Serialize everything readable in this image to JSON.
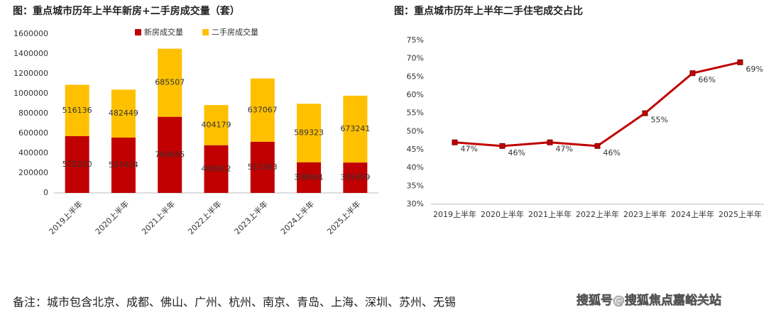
{
  "chart_data": [
    {
      "type": "bar",
      "stacked": true,
      "title": "图：重点城市历年上半年新房+二手房成交量（套）",
      "categories": [
        "2019上半年",
        "2020上半年",
        "2021上半年",
        "2022上半年",
        "2023上半年",
        "2024上半年",
        "2025上半年"
      ],
      "series": [
        {
          "name": "新房成交量",
          "color": "#c00000",
          "values": [
            572220,
            557434,
            766645,
            480412,
            515363,
            308691,
            305959
          ]
        },
        {
          "name": "二手房成交量",
          "color": "#ffc000",
          "values": [
            516136,
            482449,
            685507,
            404179,
            637067,
            589323,
            673241
          ]
        }
      ],
      "ylim": [
        0,
        1600000
      ],
      "yticks": [
        0,
        200000,
        400000,
        600000,
        800000,
        1000000,
        1200000,
        1400000,
        1600000
      ],
      "legend": "top"
    },
    {
      "type": "line",
      "title": "图：重点城市历年上半年二手住宅成交占比",
      "categories": [
        "2019上半年",
        "2020上半年",
        "2021上半年",
        "2022上半年",
        "2023上半年",
        "2024上半年",
        "2025上半年"
      ],
      "values": [
        47,
        46,
        47,
        46,
        55,
        66,
        69
      ],
      "value_labels": [
        "47%",
        "46%",
        "47%",
        "46%",
        "55%",
        "66%",
        "69%"
      ],
      "color": "#c00000",
      "ylim": [
        30,
        75
      ],
      "yticks": [
        {
          "value": 30,
          "label": "30%"
        },
        {
          "value": 35,
          "label": "35%"
        },
        {
          "value": 40,
          "label": "40%"
        },
        {
          "value": 45,
          "label": "45%"
        },
        {
          "value": 50,
          "label": "50%"
        },
        {
          "value": 55,
          "label": "55%"
        },
        {
          "value": 60,
          "label": "60%"
        },
        {
          "value": 65,
          "label": "65%"
        },
        {
          "value": 70,
          "label": "70%"
        },
        {
          "value": 75,
          "label": "75%"
        }
      ]
    }
  ],
  "note": "备注：城市包含北京、成都、佛山、广州、杭州、南京、青岛、上海、深圳、苏州、无锡",
  "watermark": "搜狐号@搜狐焦点嘉峪关站"
}
